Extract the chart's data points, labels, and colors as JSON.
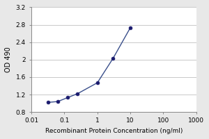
{
  "x_values": [
    0.0313,
    0.0625,
    0.125,
    0.25,
    1.0,
    3.0,
    10.0
  ],
  "y_values": [
    1.02,
    1.04,
    1.13,
    1.22,
    1.47,
    2.03,
    2.73
  ],
  "x_min": 0.01,
  "x_max": 1000,
  "y_min": 0.8,
  "y_max": 3.2,
  "y_ticks": [
    0.8,
    1.2,
    1.6,
    2.0,
    2.4,
    2.8,
    3.2
  ],
  "x_ticks": [
    0.01,
    0.1,
    1,
    10,
    100,
    1000
  ],
  "x_tick_labels": [
    "0.01",
    "0.1",
    "1",
    "10",
    "100",
    "1000"
  ],
  "line_color": "#3a4f8b",
  "marker_color": "#1a1a6e",
  "xlabel": "Recombinant Protein Concentration (ng/ml)",
  "ylabel": "OD 490",
  "background_color": "#e8e8e8",
  "plot_bg_color": "#ffffff",
  "grid_color": "#c0c0c0",
  "spine_color": "#888888",
  "tick_label_fontsize": 6.5,
  "xlabel_fontsize": 6.5,
  "ylabel_fontsize": 7.0
}
